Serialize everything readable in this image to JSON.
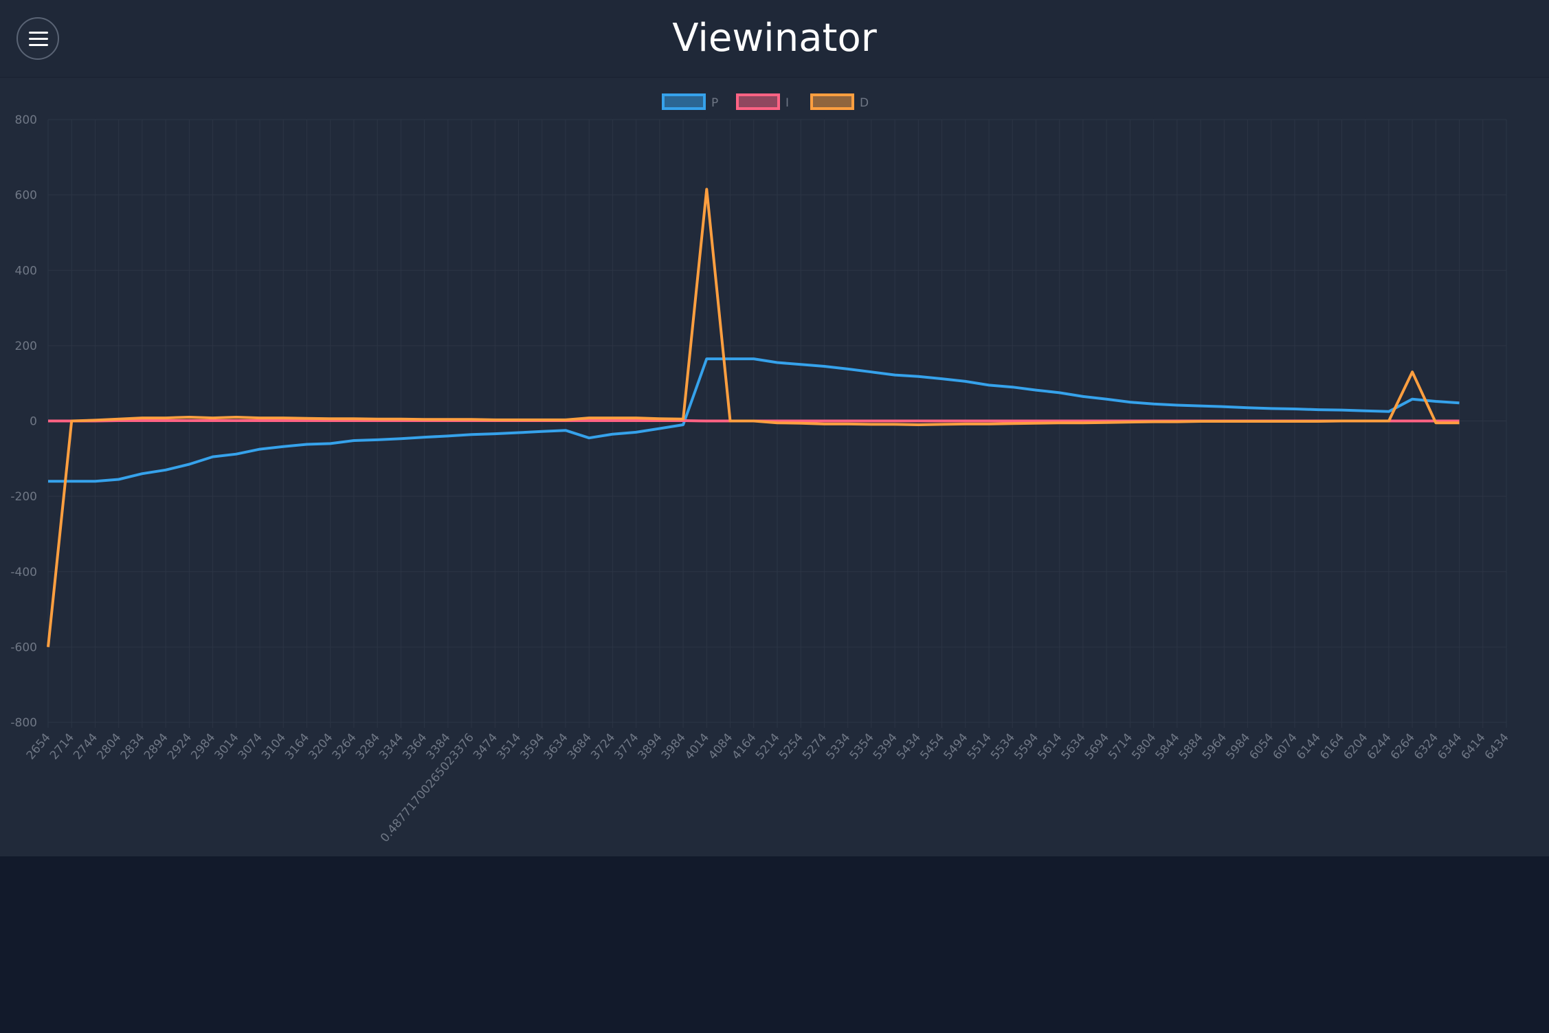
{
  "header": {
    "title": "Viewinator"
  },
  "chart_data": {
    "type": "line",
    "categories": [
      "2654",
      "2714",
      "2744",
      "2804",
      "2834",
      "2894",
      "2924",
      "2984",
      "3014",
      "3074",
      "3104",
      "3164",
      "3204",
      "3264",
      "3284",
      "3344",
      "3364",
      "3384",
      "0.48771700265023376",
      "3474",
      "3514",
      "3594",
      "3634",
      "3684",
      "3724",
      "3774",
      "3894",
      "3984",
      "4014",
      "4084",
      "4164",
      "5214",
      "5254",
      "5274",
      "5334",
      "5354",
      "5394",
      "5434",
      "5454",
      "5494",
      "5514",
      "5534",
      "5594",
      "5614",
      "5634",
      "5694",
      "5714",
      "5804",
      "5844",
      "5884",
      "5964",
      "5984",
      "6054",
      "6074",
      "6144",
      "6164",
      "6204",
      "6244",
      "6264",
      "6324",
      "6344",
      "6414",
      "6434"
    ],
    "series": [
      {
        "name": "P",
        "color": "#36a2eb",
        "values": [
          -160,
          -160,
          -160,
          -155,
          -140,
          -130,
          -115,
          -95,
          -88,
          -75,
          -68,
          -62,
          -60,
          -52,
          -50,
          -47,
          -43,
          -40,
          -36,
          -34,
          -31,
          -28,
          -25,
          -45,
          -35,
          -30,
          -20,
          -10,
          165,
          165,
          165,
          155,
          150,
          145,
          138,
          130,
          122,
          118,
          112,
          105,
          95,
          90,
          82,
          75,
          65,
          58,
          50,
          45,
          42,
          40,
          38,
          35,
          33,
          32,
          30,
          29,
          27,
          25,
          58,
          52,
          48,
          null,
          null
        ]
      },
      {
        "name": "I",
        "color": "#ff6384",
        "values": [
          0,
          0,
          0,
          1,
          1,
          1,
          1,
          1,
          1,
          1,
          1,
          1,
          1,
          1,
          1,
          1,
          1,
          1,
          1,
          1,
          1,
          1,
          1,
          1,
          1,
          1,
          1,
          1,
          0,
          0,
          0,
          0,
          0,
          0,
          0,
          0,
          0,
          0,
          0,
          0,
          0,
          0,
          0,
          0,
          0,
          0,
          0,
          0,
          0,
          0,
          0,
          0,
          0,
          0,
          0,
          0,
          0,
          0,
          0,
          0,
          0,
          null,
          null
        ]
      },
      {
        "name": "D",
        "color": "#ff9f40",
        "values": [
          -600,
          0,
          2,
          5,
          8,
          8,
          10,
          8,
          10,
          8,
          8,
          7,
          6,
          6,
          5,
          5,
          4,
          4,
          4,
          3,
          3,
          3,
          3,
          8,
          8,
          8,
          6,
          5,
          615,
          0,
          0,
          -5,
          -6,
          -8,
          -8,
          -9,
          -9,
          -10,
          -9,
          -8,
          -8,
          -7,
          -6,
          -5,
          -5,
          -4,
          -3,
          -2,
          -2,
          -1,
          -1,
          -1,
          -1,
          -1,
          -1,
          0,
          0,
          0,
          130,
          -5,
          -5,
          null,
          null
        ]
      }
    ],
    "ylim": [
      -800,
      800
    ],
    "yticks": [
      -800,
      -600,
      -400,
      -200,
      0,
      200,
      400,
      600,
      800
    ],
    "grid": true,
    "legend": "top"
  }
}
